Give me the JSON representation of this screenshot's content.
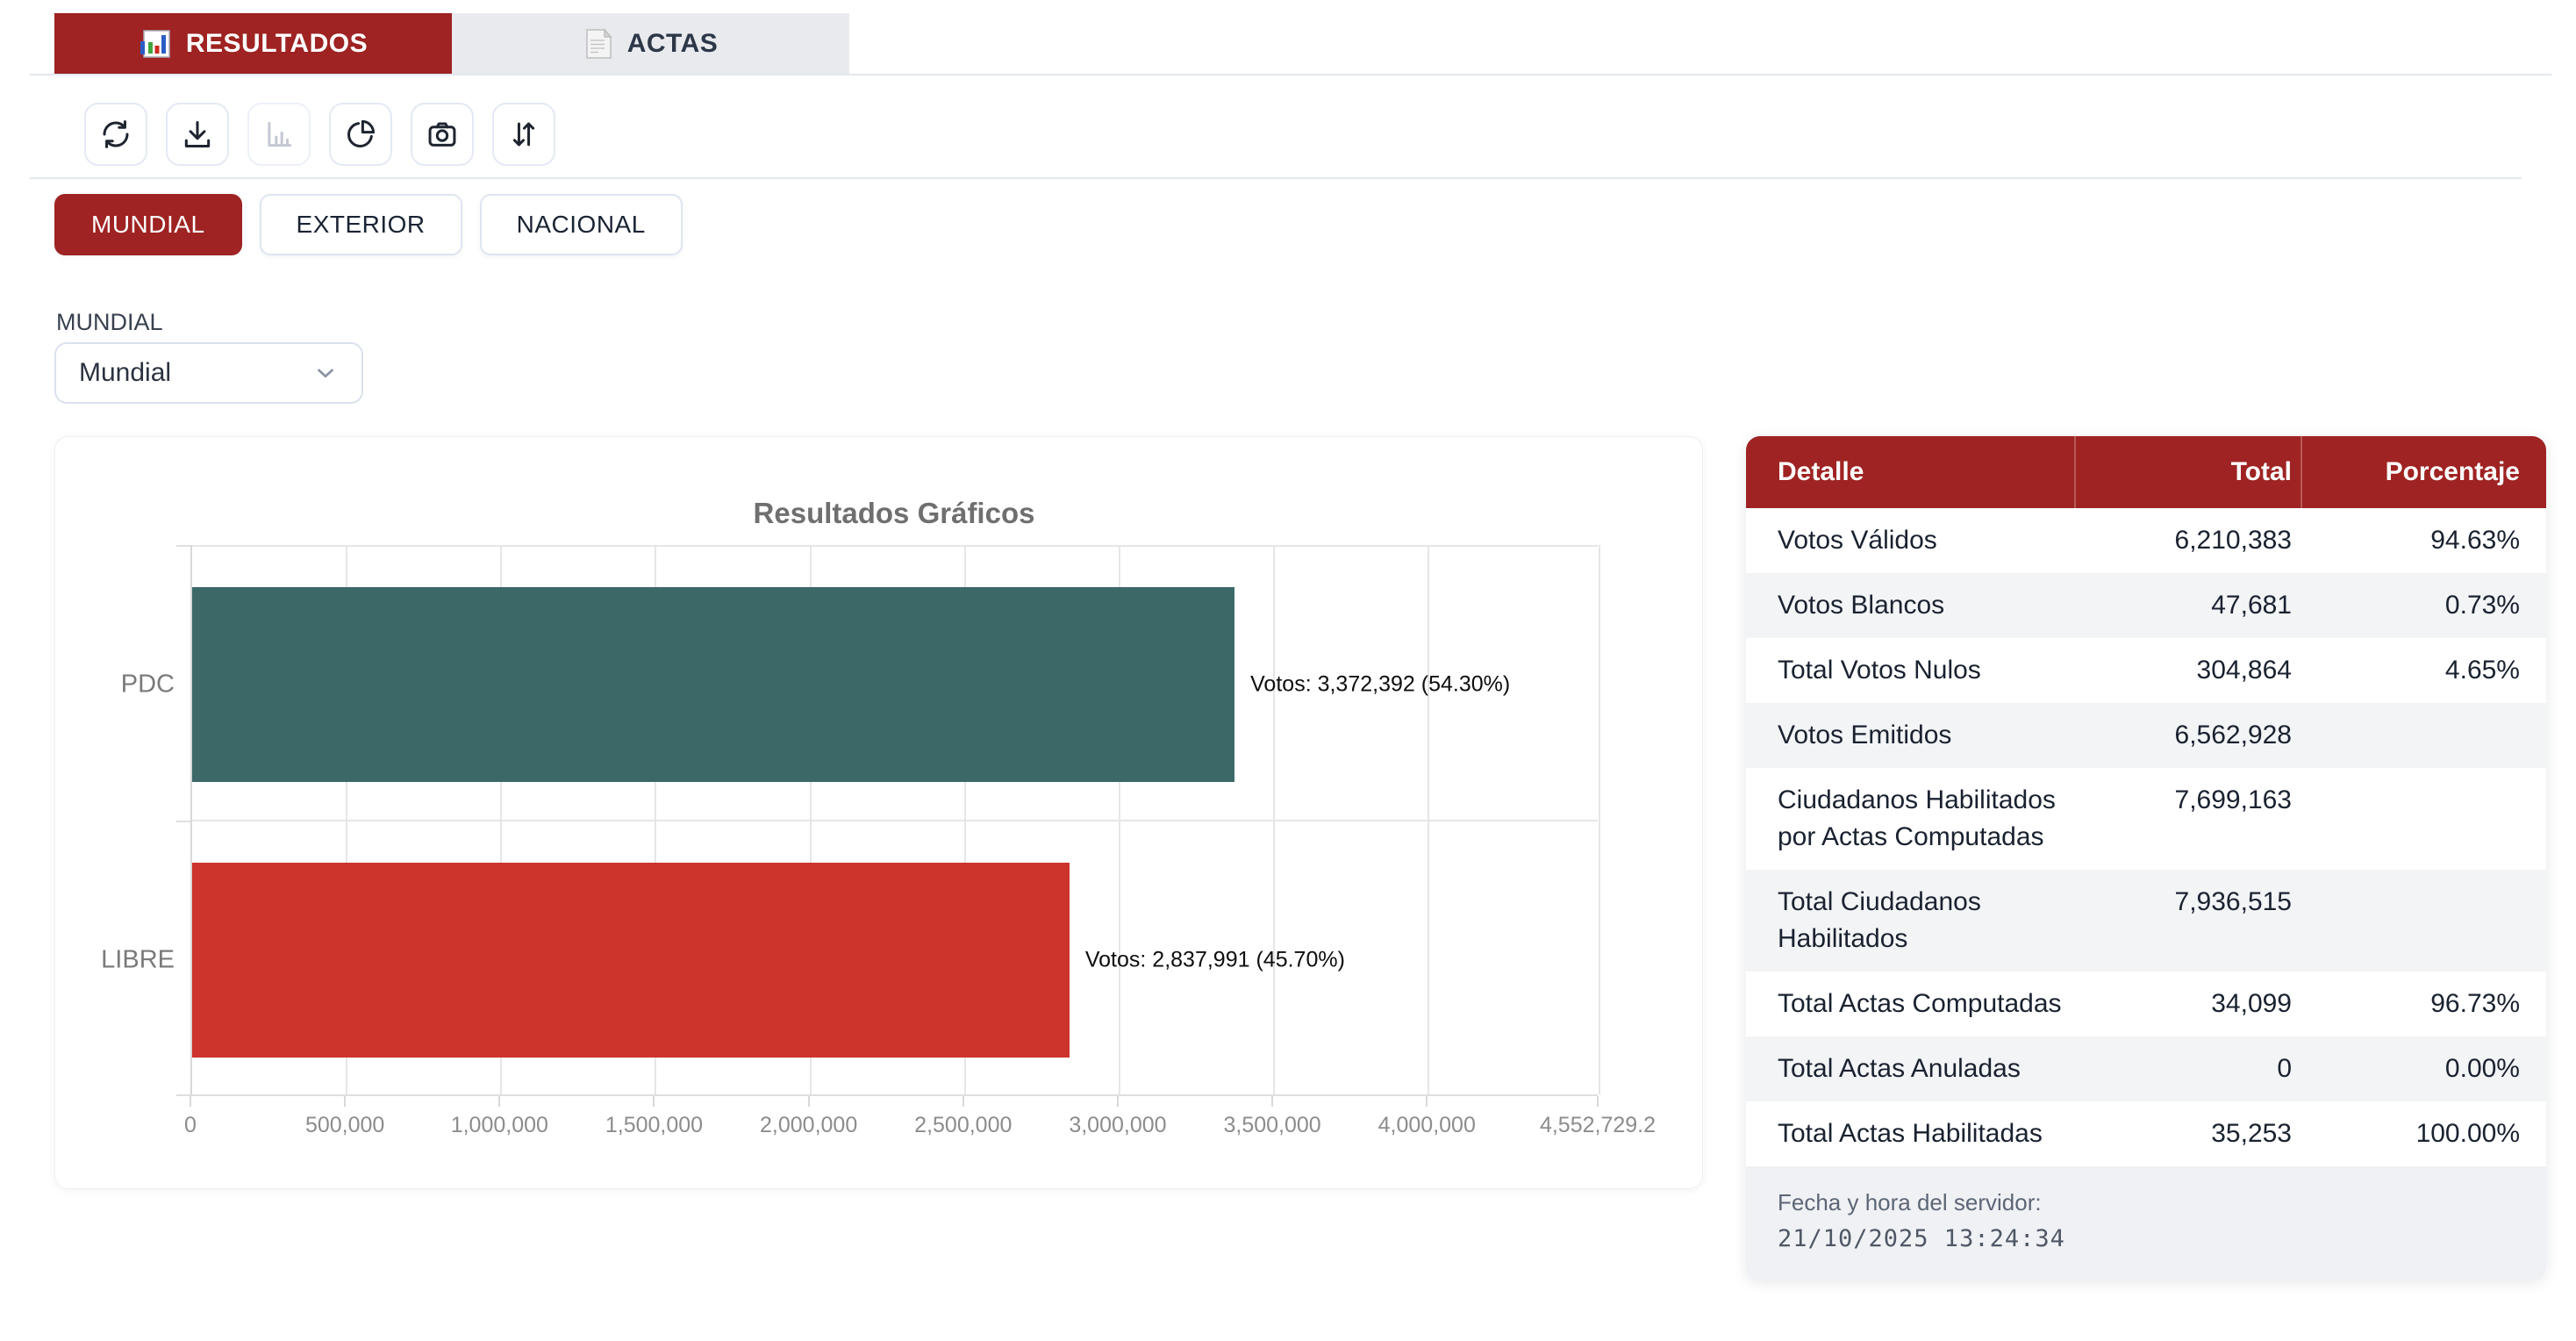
{
  "tabs": [
    {
      "label": "RESULTADOS",
      "active": true,
      "icon": "results-chart-icon"
    },
    {
      "label": "ACTAS",
      "active": false,
      "icon": "document-icon"
    }
  ],
  "toolbar": {
    "buttons": [
      {
        "name": "refresh",
        "disabled": false
      },
      {
        "name": "download",
        "disabled": false
      },
      {
        "name": "bar-chart",
        "disabled": true
      },
      {
        "name": "pie-chart",
        "disabled": false
      },
      {
        "name": "camera",
        "disabled": false
      },
      {
        "name": "sort",
        "disabled": false
      }
    ]
  },
  "scope_buttons": [
    {
      "label": "MUNDIAL",
      "active": true
    },
    {
      "label": "EXTERIOR",
      "active": false
    },
    {
      "label": "NACIONAL",
      "active": false
    }
  ],
  "filter": {
    "label": "MUNDIAL",
    "selected": "Mundial"
  },
  "chart_data": {
    "type": "bar",
    "orientation": "horizontal",
    "title": "Resultados Gráficos",
    "categories": [
      "PDC",
      "LIBRE"
    ],
    "values": [
      3372392,
      2837991
    ],
    "percentages": [
      54.3,
      45.7
    ],
    "value_labels": [
      "Votos: 3,372,392 (54.30%)",
      "Votos: 2,837,991 (45.70%)"
    ],
    "bar_colors": [
      "#3C6868",
      "#CD342B"
    ],
    "xlim": [
      0,
      4552729.2
    ],
    "x_tick_values": [
      0,
      500000,
      1000000,
      1500000,
      2000000,
      2500000,
      3000000,
      3500000,
      4000000,
      4552729.2
    ],
    "x_tick_labels": [
      "0",
      "500,000",
      "1,000,000",
      "1,500,000",
      "2,000,000",
      "2,500,000",
      "3,000,000",
      "3,500,000",
      "4,000,000",
      "4,552,729.2"
    ],
    "grid": true,
    "legend": false
  },
  "summary_table": {
    "columns": [
      "Detalle",
      "Total",
      "Porcentaje"
    ],
    "rows": [
      {
        "detalle": "Votos Válidos",
        "total": "6,210,383",
        "porcentaje": "94.63%"
      },
      {
        "detalle": "Votos Blancos",
        "total": "47,681",
        "porcentaje": "0.73%"
      },
      {
        "detalle": "Total Votos Nulos",
        "total": "304,864",
        "porcentaje": "4.65%"
      },
      {
        "detalle": "Votos Emitidos",
        "total": "6,562,928",
        "porcentaje": ""
      },
      {
        "detalle": "Ciudadanos Habilitados por Actas Computadas",
        "total": "7,699,163",
        "porcentaje": ""
      },
      {
        "detalle": "Total Ciudadanos Habilitados",
        "total": "7,936,515",
        "porcentaje": ""
      },
      {
        "detalle": "Total Actas Computadas",
        "total": "34,099",
        "porcentaje": "96.73%"
      },
      {
        "detalle": "Total Actas Anuladas",
        "total": "0",
        "porcentaje": "0.00%"
      },
      {
        "detalle": "Total Actas Habilitadas",
        "total": "35,253",
        "porcentaje": "100.00%"
      }
    ],
    "footer": {
      "label": "Fecha y hora del servidor:",
      "timestamp": "21/10/2025 13:24:34"
    }
  },
  "colors": {
    "accent_red": "#9E2322",
    "inactive_tab_bg": "#E8EAEE",
    "bar_pdc": "#3C6868",
    "bar_libre": "#CD342B",
    "row_stripe": "#F3F4F6",
    "footer_bg": "#F0F1F4"
  }
}
